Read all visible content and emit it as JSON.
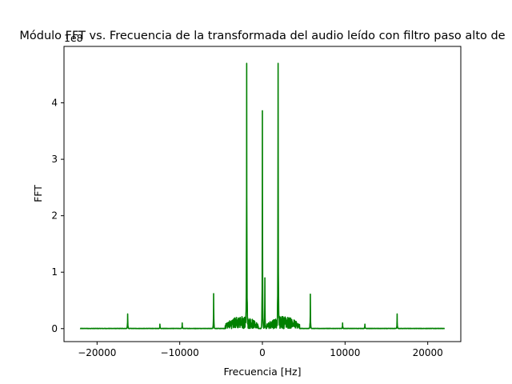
{
  "chart_data": {
    "type": "line",
    "title": "Módulo FFT vs. Frecuencia de la transformada del audio leído con filtro paso alto de",
    "xlabel": "Frecuencia [Hz]",
    "ylabel": "FFT",
    "offset_text": "1e8",
    "xlim": [
      -24000,
      24000
    ],
    "ylim": [
      -0.23,
      5.0
    ],
    "x_ticks": [
      -20000,
      -10000,
      0,
      10000,
      20000
    ],
    "x_tick_labels": [
      "−20000",
      "−10000",
      "0",
      "10000",
      "20000"
    ],
    "y_ticks": [
      0,
      1,
      2,
      3,
      4
    ],
    "y_tick_labels": [
      "0",
      "1",
      "2",
      "3",
      "4"
    ],
    "grid": false,
    "legend": "none",
    "line_color": "#008000",
    "x_range": [
      -22050,
      22050
    ],
    "peaks": [
      {
        "x": -16300,
        "y": 0.26
      },
      {
        "x": -12400,
        "y": 0.08
      },
      {
        "x": -9700,
        "y": 0.1
      },
      {
        "x": -5900,
        "y": 0.62
      },
      {
        "x": -1900,
        "y": 4.7
      },
      {
        "x": 0,
        "y": 3.86
      },
      {
        "x": 300,
        "y": 0.9
      },
      {
        "x": 1900,
        "y": 4.7
      },
      {
        "x": 5800,
        "y": 0.61
      },
      {
        "x": 9700,
        "y": 0.1
      },
      {
        "x": 12400,
        "y": 0.08
      },
      {
        "x": 16300,
        "y": 0.26
      }
    ],
    "bands": [
      {
        "x_from": -4500,
        "x_to": -500,
        "y_max": 0.22
      },
      {
        "x_from": 500,
        "x_to": 4500,
        "y_max": 0.22
      }
    ]
  }
}
